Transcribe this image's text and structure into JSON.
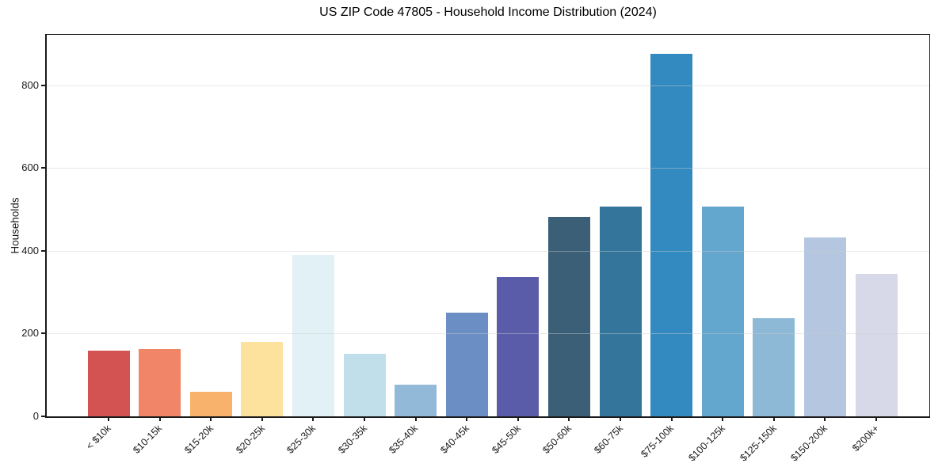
{
  "chart_data": {
    "type": "bar",
    "title": "US ZIP Code 47805 - Household Income Distribution (2024)",
    "xlabel": "",
    "ylabel": "Households",
    "categories": [
      "< $10k",
      "$10-15k",
      "$15-20k",
      "$20-25k",
      "$25-30k",
      "$30-35k",
      "$35-40k",
      "$40-45k",
      "$45-50k",
      "$50-60k",
      "$60-75k",
      "$75-100k",
      "$100-125k",
      "$125-150k",
      "$150-200k",
      "$200k+"
    ],
    "values": [
      159,
      162,
      59,
      180,
      391,
      152,
      76,
      250,
      337,
      482,
      506,
      876,
      506,
      238,
      432,
      345
    ],
    "bar_colors": [
      "#d25351",
      "#f08567",
      "#f9b26c",
      "#fde29e",
      "#e2f1f5",
      "#c1dfea",
      "#92bad8",
      "#6b8ec4",
      "#5a5ca9",
      "#3a5f77",
      "#34759c",
      "#338ac0",
      "#63a6ce",
      "#8db9d7",
      "#b5c7e0",
      "#d7d9e8"
    ],
    "yticks": [
      0,
      200,
      400,
      600,
      800
    ],
    "ylim": [
      0,
      922
    ],
    "grid": "horizontal",
    "grid_color": "#e8e8e8",
    "grid_over_bars": true,
    "axis_color": "#1a1a1a",
    "background_color": "#ffffff",
    "legend_position": "none",
    "x_tick_rotation": 45
  }
}
